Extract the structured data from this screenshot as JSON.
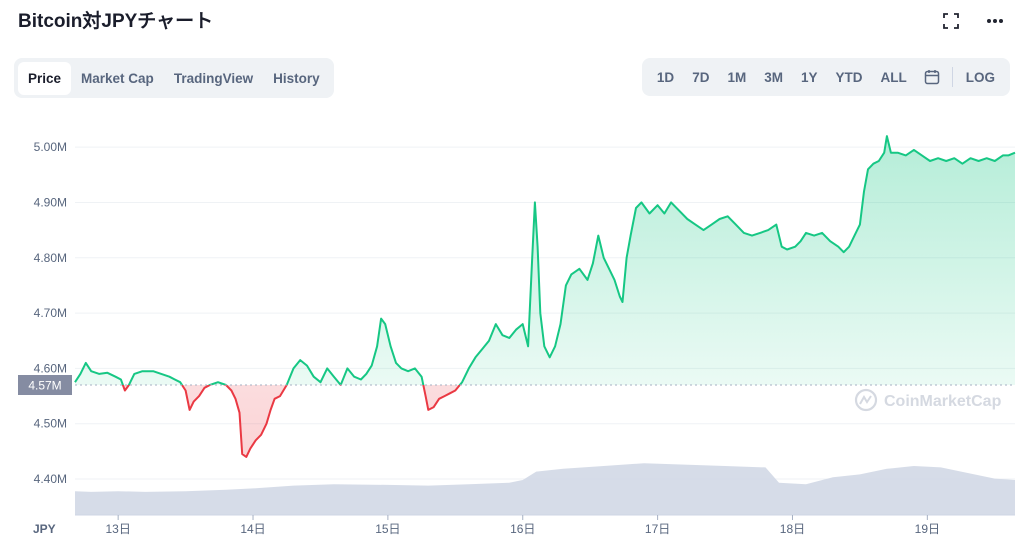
{
  "header": {
    "title": "Bitcoin対JPYチャート",
    "fullscreen_icon": "fullscreen-icon",
    "more_icon": "more-options-icon"
  },
  "tabs": [
    {
      "label": "Price",
      "active": true
    },
    {
      "label": "Market Cap",
      "active": false
    },
    {
      "label": "TradingView",
      "active": false
    },
    {
      "label": "History",
      "active": false
    }
  ],
  "ranges": [
    "1D",
    "7D",
    "1M",
    "3M",
    "1Y",
    "YTD",
    "ALL"
  ],
  "calendar_icon": "calendar-icon",
  "log_label": "LOG",
  "watermark": "CoinMarketCap",
  "currency_label": "JPY",
  "colors": {
    "up": "#16c784",
    "down": "#ea3943",
    "volume": "#cfd6e4",
    "grid": "#eff2f5",
    "baseline_tag": "#858ca2"
  },
  "chart_data": {
    "type": "area",
    "baseline_label": "4.57M",
    "baseline_value": 4.57,
    "y_unit": "M JPY",
    "ylim": [
      4.335,
      5.04
    ],
    "y_ticks": [
      "4.40M",
      "4.50M",
      "4.60M",
      "4.70M",
      "4.80M",
      "4.90M",
      "5.00M"
    ],
    "y_tick_values": [
      4.4,
      4.5,
      4.6,
      4.7,
      4.8,
      4.9,
      5.0
    ],
    "x_ticks": [
      "13日",
      "14日",
      "15日",
      "16日",
      "17日",
      "18日",
      "19日"
    ],
    "x_tick_values": [
      13,
      14,
      15,
      16,
      17,
      18,
      19
    ],
    "xlim": [
      12.68,
      19.65
    ],
    "grid": true,
    "series": [
      {
        "values": [
          [
            12.68,
            4.575
          ],
          [
            12.72,
            4.59
          ],
          [
            12.76,
            4.61
          ],
          [
            12.8,
            4.595
          ],
          [
            12.86,
            4.59
          ],
          [
            12.92,
            4.592
          ],
          [
            12.98,
            4.585
          ],
          [
            13.02,
            4.58
          ],
          [
            13.05,
            4.56
          ],
          [
            13.08,
            4.57
          ],
          [
            13.12,
            4.59
          ],
          [
            13.18,
            4.595
          ],
          [
            13.26,
            4.595
          ],
          [
            13.32,
            4.59
          ],
          [
            13.38,
            4.585
          ],
          [
            13.42,
            4.58
          ],
          [
            13.46,
            4.575
          ],
          [
            13.5,
            4.56
          ],
          [
            13.53,
            4.525
          ],
          [
            13.56,
            4.54
          ],
          [
            13.6,
            4.55
          ],
          [
            13.64,
            4.565
          ],
          [
            13.68,
            4.57
          ],
          [
            13.74,
            4.575
          ],
          [
            13.8,
            4.57
          ],
          [
            13.84,
            4.56
          ],
          [
            13.87,
            4.545
          ],
          [
            13.9,
            4.52
          ],
          [
            13.92,
            4.445
          ],
          [
            13.95,
            4.44
          ],
          [
            13.98,
            4.455
          ],
          [
            14.02,
            4.47
          ],
          [
            14.06,
            4.48
          ],
          [
            14.1,
            4.5
          ],
          [
            14.13,
            4.525
          ],
          [
            14.16,
            4.545
          ],
          [
            14.2,
            4.55
          ],
          [
            14.25,
            4.57
          ],
          [
            14.3,
            4.6
          ],
          [
            14.35,
            4.615
          ],
          [
            14.4,
            4.605
          ],
          [
            14.45,
            4.585
          ],
          [
            14.5,
            4.575
          ],
          [
            14.55,
            4.6
          ],
          [
            14.6,
            4.585
          ],
          [
            14.65,
            4.57
          ],
          [
            14.7,
            4.6
          ],
          [
            14.75,
            4.585
          ],
          [
            14.8,
            4.58
          ],
          [
            14.84,
            4.59
          ],
          [
            14.88,
            4.605
          ],
          [
            14.92,
            4.64
          ],
          [
            14.95,
            4.69
          ],
          [
            14.98,
            4.68
          ],
          [
            15.02,
            4.64
          ],
          [
            15.06,
            4.61
          ],
          [
            15.1,
            4.6
          ],
          [
            15.15,
            4.595
          ],
          [
            15.2,
            4.6
          ],
          [
            15.25,
            4.585
          ],
          [
            15.28,
            4.55
          ],
          [
            15.3,
            4.525
          ],
          [
            15.34,
            4.53
          ],
          [
            15.38,
            4.545
          ],
          [
            15.42,
            4.55
          ],
          [
            15.46,
            4.555
          ],
          [
            15.5,
            4.56
          ],
          [
            15.55,
            4.575
          ],
          [
            15.6,
            4.6
          ],
          [
            15.65,
            4.62
          ],
          [
            15.7,
            4.635
          ],
          [
            15.75,
            4.65
          ],
          [
            15.8,
            4.68
          ],
          [
            15.85,
            4.66
          ],
          [
            15.9,
            4.655
          ],
          [
            15.95,
            4.67
          ],
          [
            16.0,
            4.68
          ],
          [
            16.04,
            4.64
          ],
          [
            16.07,
            4.8
          ],
          [
            16.09,
            4.9
          ],
          [
            16.11,
            4.82
          ],
          [
            16.13,
            4.7
          ],
          [
            16.16,
            4.64
          ],
          [
            16.2,
            4.62
          ],
          [
            16.24,
            4.64
          ],
          [
            16.28,
            4.68
          ],
          [
            16.32,
            4.75
          ],
          [
            16.36,
            4.77
          ],
          [
            16.42,
            4.78
          ],
          [
            16.48,
            4.76
          ],
          [
            16.52,
            4.79
          ],
          [
            16.56,
            4.84
          ],
          [
            16.6,
            4.8
          ],
          [
            16.64,
            4.78
          ],
          [
            16.68,
            4.76
          ],
          [
            16.72,
            4.73
          ],
          [
            16.74,
            4.72
          ],
          [
            16.77,
            4.8
          ],
          [
            16.8,
            4.84
          ],
          [
            16.84,
            4.89
          ],
          [
            16.88,
            4.9
          ],
          [
            16.94,
            4.88
          ],
          [
            17.0,
            4.895
          ],
          [
            17.05,
            4.88
          ],
          [
            17.1,
            4.9
          ],
          [
            17.16,
            4.885
          ],
          [
            17.22,
            4.87
          ],
          [
            17.28,
            4.86
          ],
          [
            17.34,
            4.85
          ],
          [
            17.4,
            4.86
          ],
          [
            17.46,
            4.87
          ],
          [
            17.52,
            4.875
          ],
          [
            17.58,
            4.86
          ],
          [
            17.64,
            4.845
          ],
          [
            17.7,
            4.84
          ],
          [
            17.76,
            4.845
          ],
          [
            17.82,
            4.85
          ],
          [
            17.88,
            4.86
          ],
          [
            17.92,
            4.82
          ],
          [
            17.96,
            4.815
          ],
          [
            18.02,
            4.82
          ],
          [
            18.06,
            4.83
          ],
          [
            18.1,
            4.845
          ],
          [
            18.16,
            4.84
          ],
          [
            18.22,
            4.845
          ],
          [
            18.28,
            4.83
          ],
          [
            18.34,
            4.82
          ],
          [
            18.38,
            4.81
          ],
          [
            18.42,
            4.82
          ],
          [
            18.46,
            4.84
          ],
          [
            18.5,
            4.86
          ],
          [
            18.53,
            4.92
          ],
          [
            18.56,
            4.96
          ],
          [
            18.6,
            4.97
          ],
          [
            18.64,
            4.975
          ],
          [
            18.68,
            4.99
          ],
          [
            18.7,
            5.02
          ],
          [
            18.73,
            4.99
          ],
          [
            18.78,
            4.99
          ],
          [
            18.84,
            4.985
          ],
          [
            18.9,
            4.995
          ],
          [
            18.96,
            4.985
          ],
          [
            19.02,
            4.975
          ],
          [
            19.08,
            4.98
          ],
          [
            19.14,
            4.975
          ],
          [
            19.2,
            4.98
          ],
          [
            19.26,
            4.97
          ],
          [
            19.32,
            4.98
          ],
          [
            19.38,
            4.975
          ],
          [
            19.44,
            4.98
          ],
          [
            19.5,
            4.975
          ],
          [
            19.56,
            4.985
          ],
          [
            19.6,
            4.985
          ],
          [
            19.65,
            4.99
          ]
        ]
      }
    ],
    "volume": [
      [
        12.68,
        0.34
      ],
      [
        12.8,
        0.33
      ],
      [
        13.0,
        0.34
      ],
      [
        13.2,
        0.33
      ],
      [
        13.5,
        0.34
      ],
      [
        13.8,
        0.36
      ],
      [
        14.0,
        0.38
      ],
      [
        14.3,
        0.42
      ],
      [
        14.6,
        0.44
      ],
      [
        15.0,
        0.43
      ],
      [
        15.3,
        0.42
      ],
      [
        15.6,
        0.44
      ],
      [
        15.9,
        0.46
      ],
      [
        16.0,
        0.5
      ],
      [
        16.1,
        0.62
      ],
      [
        16.3,
        0.66
      ],
      [
        16.6,
        0.7
      ],
      [
        16.9,
        0.74
      ],
      [
        17.2,
        0.72
      ],
      [
        17.5,
        0.7
      ],
      [
        17.8,
        0.68
      ],
      [
        17.9,
        0.46
      ],
      [
        18.1,
        0.44
      ],
      [
        18.3,
        0.54
      ],
      [
        18.5,
        0.58
      ],
      [
        18.7,
        0.66
      ],
      [
        18.9,
        0.7
      ],
      [
        19.1,
        0.68
      ],
      [
        19.3,
        0.6
      ],
      [
        19.5,
        0.52
      ],
      [
        19.65,
        0.5
      ]
    ]
  }
}
